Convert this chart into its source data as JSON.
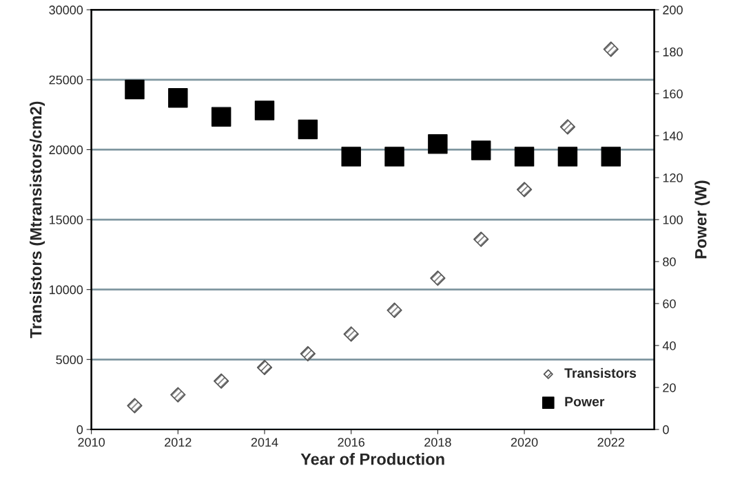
{
  "chart_data": {
    "type": "scatter",
    "xlabel": "Year of Production",
    "ylabel": "Transistors (Mtransistors/cm2)",
    "y2label": "Power (W)",
    "x": [
      2011,
      2012,
      2013,
      2014,
      2015,
      2016,
      2017,
      2018,
      2019,
      2020,
      2021,
      2022
    ],
    "series": [
      {
        "name": "Transistors",
        "color": "#555555",
        "marker": "diamond",
        "values": [
          1700,
          2480,
          3460,
          4430,
          5410,
          6820,
          8520,
          10810,
          13590,
          17150,
          21630,
          27180
        ]
      },
      {
        "name": "Power",
        "color": "#000000",
        "marker": "square",
        "axis": "y2",
        "values": [
          162,
          158,
          149,
          152,
          143,
          130,
          130,
          136,
          133,
          130,
          130,
          130
        ]
      }
    ],
    "xlim": [
      2010,
      2023
    ],
    "xticks": [
      2010,
      2012,
      2014,
      2016,
      2018,
      2020,
      2022
    ],
    "ylim": [
      0,
      30000
    ],
    "yticks": [
      0,
      5000,
      10000,
      15000,
      20000,
      25000,
      30000
    ],
    "y2lim": [
      0,
      200
    ],
    "y2ticks": [
      0,
      20,
      40,
      60,
      80,
      100,
      120,
      140,
      160,
      180,
      200
    ],
    "grid": "y",
    "legend": "bottom right"
  }
}
